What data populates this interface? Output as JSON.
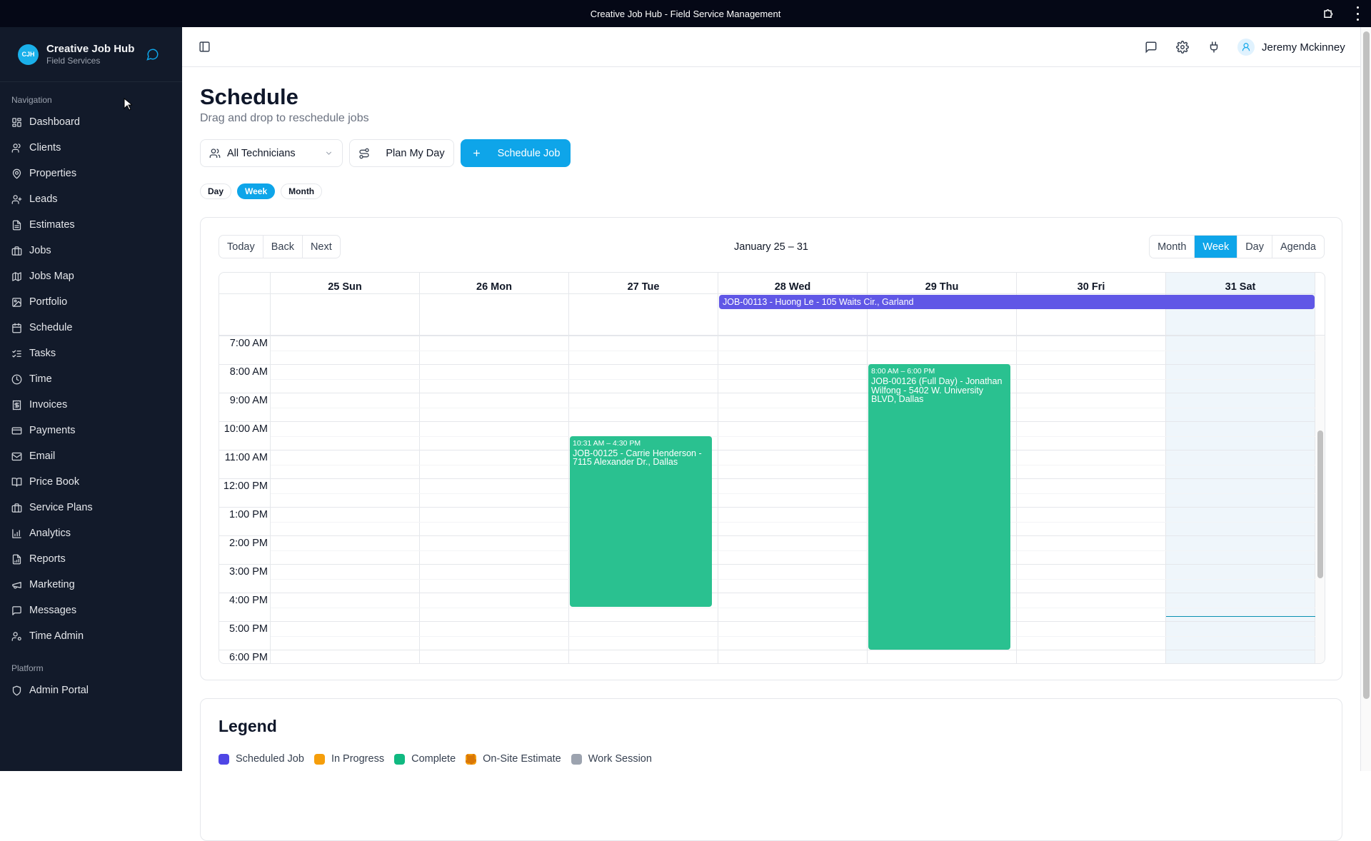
{
  "window": {
    "title": "Creative Job Hub - Field Service Management"
  },
  "sidebar": {
    "brand": {
      "logo_text": "CJH",
      "name": "Creative Job Hub",
      "subtitle": "Field Services"
    },
    "section_navigation": "Navigation",
    "items": [
      {
        "label": "Dashboard",
        "icon": "dashboard-icon"
      },
      {
        "label": "Clients",
        "icon": "users-icon"
      },
      {
        "label": "Properties",
        "icon": "map-pin-icon"
      },
      {
        "label": "Leads",
        "icon": "user-plus-icon"
      },
      {
        "label": "Estimates",
        "icon": "file-text-icon"
      },
      {
        "label": "Jobs",
        "icon": "briefcase-icon"
      },
      {
        "label": "Jobs Map",
        "icon": "map-icon"
      },
      {
        "label": "Portfolio",
        "icon": "image-icon"
      },
      {
        "label": "Schedule",
        "icon": "calendar-icon"
      },
      {
        "label": "Tasks",
        "icon": "list-checks-icon"
      },
      {
        "label": "Time",
        "icon": "clock-icon"
      },
      {
        "label": "Invoices",
        "icon": "receipt-icon"
      },
      {
        "label": "Payments",
        "icon": "credit-card-icon"
      },
      {
        "label": "Email",
        "icon": "mail-icon"
      },
      {
        "label": "Price Book",
        "icon": "book-open-icon"
      },
      {
        "label": "Service Plans",
        "icon": "briefcase-icon"
      },
      {
        "label": "Analytics",
        "icon": "bar-chart-icon"
      },
      {
        "label": "Reports",
        "icon": "file-chart-icon"
      },
      {
        "label": "Marketing",
        "icon": "megaphone-icon"
      },
      {
        "label": "Messages",
        "icon": "message-square-icon"
      },
      {
        "label": "Time Admin",
        "icon": "user-cog-icon"
      }
    ],
    "section_platform": "Platform",
    "platform_items": [
      {
        "label": "Admin Portal",
        "icon": "shield-icon"
      }
    ]
  },
  "header": {
    "user_name": "Jeremy Mckinney",
    "icons": [
      "message-square-icon",
      "gear-icon",
      "plug-icon",
      "user-icon"
    ]
  },
  "page": {
    "title": "Schedule",
    "subtitle": "Drag and drop to reschedule jobs",
    "technician_filter": "All Technicians",
    "plan_button": "Plan My Day",
    "schedule_button": "Schedule Job",
    "view_pills": [
      {
        "label": "Day",
        "active": false
      },
      {
        "label": "Week",
        "active": true
      },
      {
        "label": "Month",
        "active": false
      }
    ]
  },
  "calendar": {
    "nav": {
      "today": "Today",
      "back": "Back",
      "next": "Next"
    },
    "range_label": "January 25 – 31",
    "views": [
      {
        "label": "Month",
        "active": false
      },
      {
        "label": "Week",
        "active": true
      },
      {
        "label": "Day",
        "active": false
      },
      {
        "label": "Agenda",
        "active": false
      }
    ],
    "days": [
      "25 Sun",
      "26 Mon",
      "27 Tue",
      "28 Wed",
      "29 Thu",
      "30 Fri",
      "31 Sat"
    ],
    "hours": [
      "7:00 AM",
      "8:00 AM",
      "9:00 AM",
      "10:00 AM",
      "11:00 AM",
      "12:00 PM",
      "1:00 PM",
      "2:00 PM",
      "3:00 PM",
      "4:00 PM",
      "5:00 PM",
      "6:00 PM"
    ],
    "all_day_events": [
      {
        "title": "JOB-00113 - Huong Le - 105 Waits Cir., Garland",
        "start_day": "28 Wed",
        "end_day": "31 Sat",
        "color": "#6057e6"
      }
    ],
    "events": [
      {
        "time": "10:31 AM – 4:30 PM",
        "title": "JOB-00125 - Carrie Henderson - 7115 Alexander Dr., Dallas",
        "day": "27 Tue",
        "color": "#2ac190"
      },
      {
        "time": "8:00 AM – 6:00 PM",
        "title": "JOB-00126 (Full Day) - Jonathan Wilfong - 5402 W. University BLVD, Dallas",
        "day": "29 Thu",
        "color": "#2ac190"
      }
    ]
  },
  "legend": {
    "title": "Legend",
    "items": [
      {
        "label": "Scheduled Job",
        "color": "#4f46e5"
      },
      {
        "label": "In Progress",
        "color": "#f59e0b"
      },
      {
        "label": "Complete",
        "color": "#10b981"
      },
      {
        "label": "On-Site Estimate",
        "color": "#d97706"
      },
      {
        "label": "Work Session",
        "color": "#9ca3af"
      }
    ]
  }
}
